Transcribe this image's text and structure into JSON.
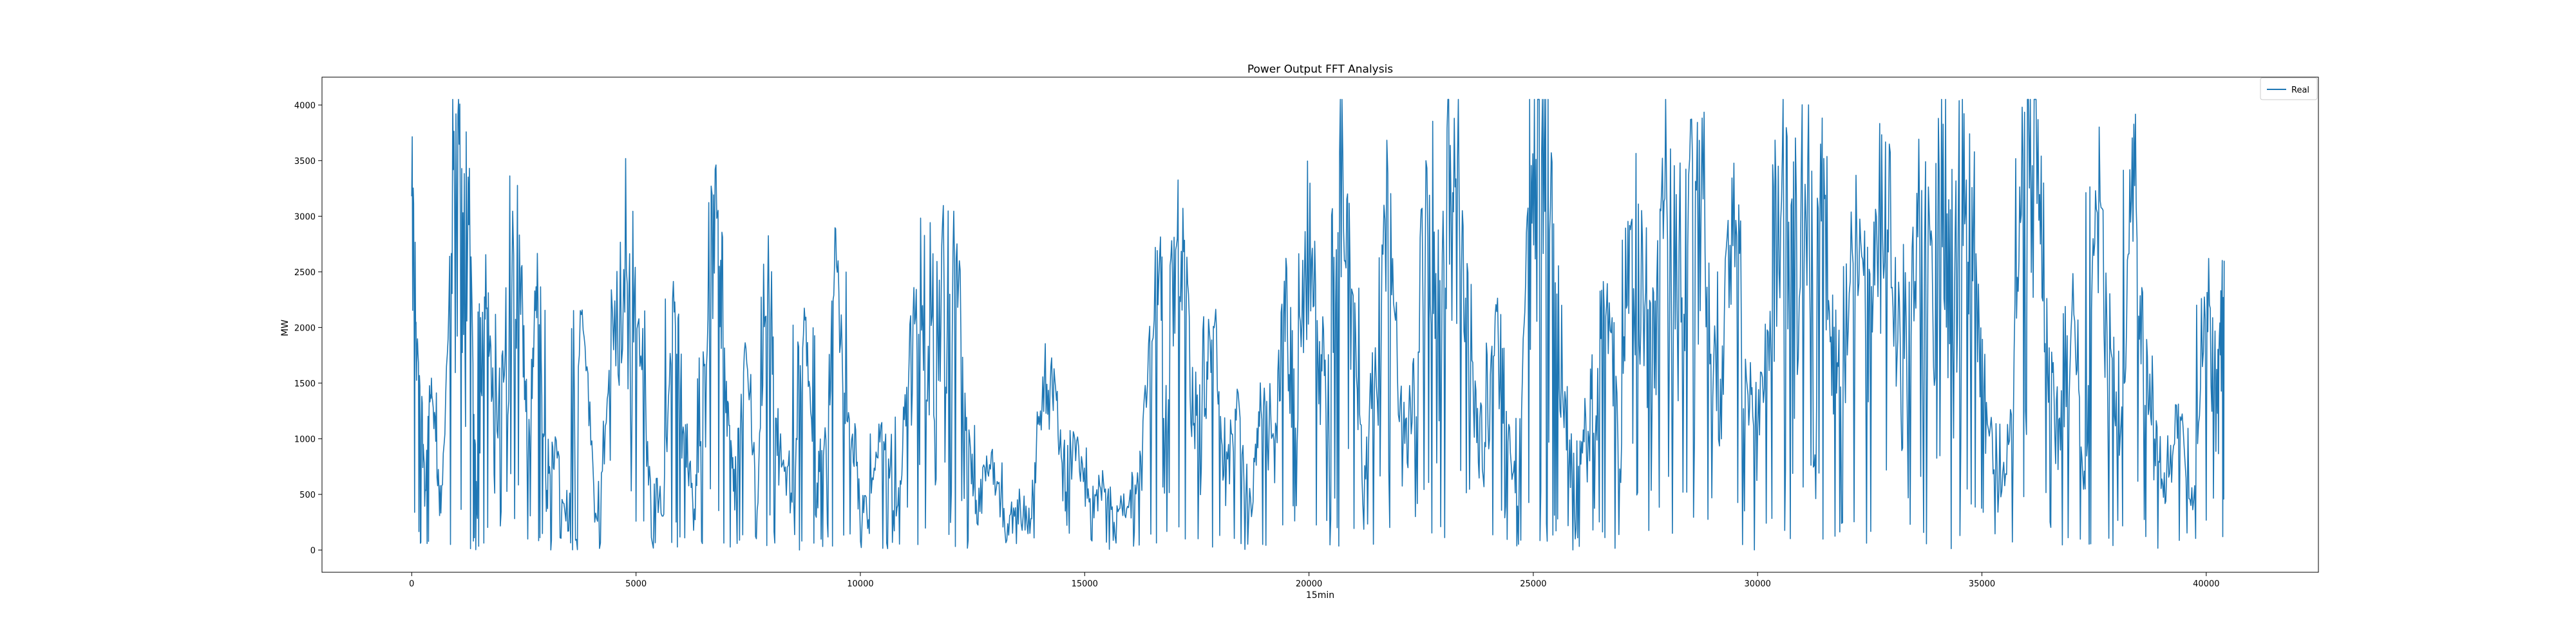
{
  "chart_data": {
    "type": "line",
    "title": "Power Output FFT Analysis",
    "xlabel": "15min",
    "ylabel": "MW",
    "xlim": [
      -2000,
      42500
    ],
    "ylim": [
      -200,
      4250
    ],
    "xticks": [
      0,
      5000,
      10000,
      15000,
      20000,
      25000,
      30000,
      35000,
      40000
    ],
    "yticks": [
      0,
      500,
      1000,
      1500,
      2000,
      2500,
      3000,
      3500,
      4000
    ],
    "grid": false,
    "legend_position": "top-right",
    "series": [
      {
        "name": "Real",
        "color": "#1f77b4",
        "anchors": [
          [
            0,
            2900
          ],
          [
            150,
            1800
          ],
          [
            300,
            600
          ],
          [
            450,
            1500
          ],
          [
            650,
            300
          ],
          [
            900,
            2900
          ],
          [
            1100,
            3100
          ],
          [
            1300,
            2800
          ],
          [
            1450,
            300
          ],
          [
            1650,
            2400
          ],
          [
            1850,
            900
          ],
          [
            2100,
            2200
          ],
          [
            2400,
            2600
          ],
          [
            2600,
            800
          ],
          [
            2800,
            2500
          ],
          [
            3000,
            400
          ],
          [
            3200,
            1000
          ],
          [
            3500,
            300
          ],
          [
            3800,
            2300
          ],
          [
            4100,
            300
          ],
          [
            4400,
            1300
          ],
          [
            4750,
            2500
          ],
          [
            5000,
            2200
          ],
          [
            5300,
            700
          ],
          [
            5600,
            300
          ],
          [
            5850,
            2400
          ],
          [
            6050,
            1200
          ],
          [
            6300,
            300
          ],
          [
            6550,
            1800
          ],
          [
            6800,
            3200
          ],
          [
            7000,
            1400
          ],
          [
            7200,
            500
          ],
          [
            7450,
            1800
          ],
          [
            7700,
            400
          ],
          [
            7950,
            2600
          ],
          [
            8200,
            900
          ],
          [
            8500,
            400
          ],
          [
            8750,
            2100
          ],
          [
            9000,
            500
          ],
          [
            9250,
            1000
          ],
          [
            9450,
            2700
          ],
          [
            9700,
            1200
          ],
          [
            9950,
            500
          ],
          [
            10200,
            300
          ],
          [
            10500,
            1200
          ],
          [
            10800,
            200
          ],
          [
            11050,
            1500
          ],
          [
            11300,
            2300
          ],
          [
            11600,
            2000
          ],
          [
            11850,
            2200
          ],
          [
            12100,
            2700
          ],
          [
            12350,
            1200
          ],
          [
            12600,
            300
          ],
          [
            12900,
            800
          ],
          [
            13200,
            200
          ],
          [
            13500,
            400
          ],
          [
            13800,
            300
          ],
          [
            14050,
            1300
          ],
          [
            14300,
            1500
          ],
          [
            14550,
            600
          ],
          [
            14800,
            1000
          ],
          [
            15100,
            300
          ],
          [
            15400,
            600
          ],
          [
            15700,
            300
          ],
          [
            16000,
            400
          ],
          [
            16250,
            800
          ],
          [
            16600,
            2500
          ],
          [
            16850,
            1500
          ],
          [
            17100,
            3000
          ],
          [
            17350,
            1500
          ],
          [
            17600,
            900
          ],
          [
            17850,
            2200
          ],
          [
            18100,
            500
          ],
          [
            18400,
            1300
          ],
          [
            18700,
            300
          ],
          [
            18950,
            1500
          ],
          [
            19200,
            800
          ],
          [
            19450,
            2200
          ],
          [
            19700,
            1200
          ],
          [
            19950,
            2700
          ],
          [
            20200,
            1800
          ],
          [
            20450,
            1200
          ],
          [
            20700,
            3300
          ],
          [
            20950,
            2400
          ],
          [
            21200,
            600
          ],
          [
            21500,
            1900
          ],
          [
            21800,
            3000
          ],
          [
            22100,
            800
          ],
          [
            22350,
            1400
          ],
          [
            22650,
            3200
          ],
          [
            22900,
            2200
          ],
          [
            23150,
            3500
          ],
          [
            23400,
            2700
          ],
          [
            23650,
            1400
          ],
          [
            23900,
            600
          ],
          [
            24150,
            2000
          ],
          [
            24400,
            1200
          ],
          [
            24650,
            400
          ],
          [
            24900,
            3300
          ],
          [
            25150,
            3600
          ],
          [
            25400,
            2900
          ],
          [
            25650,
            1500
          ],
          [
            25900,
            600
          ],
          [
            26150,
            1000
          ],
          [
            26400,
            1400
          ],
          [
            26650,
            2200
          ],
          [
            26950,
            900
          ],
          [
            27200,
            3000
          ],
          [
            27450,
            2400
          ],
          [
            27700,
            1900
          ],
          [
            27950,
            3400
          ],
          [
            28250,
            2500
          ],
          [
            28550,
            3500
          ],
          [
            28850,
            2600
          ],
          [
            29150,
            1300
          ],
          [
            29450,
            3000
          ],
          [
            29750,
            1700
          ],
          [
            30000,
            900
          ],
          [
            30300,
            2200
          ],
          [
            30550,
            3500
          ],
          [
            30800,
            1900
          ],
          [
            31100,
            3800
          ],
          [
            31350,
            3400
          ],
          [
            31600,
            2200
          ],
          [
            31850,
            1400
          ],
          [
            32150,
            2900
          ],
          [
            32450,
            1600
          ],
          [
            32700,
            2800
          ],
          [
            33000,
            2400
          ],
          [
            33250,
            1300
          ],
          [
            33550,
            2900
          ],
          [
            33850,
            2200
          ],
          [
            34100,
            3100
          ],
          [
            34350,
            2700
          ],
          [
            34600,
            3300
          ],
          [
            34850,
            2500
          ],
          [
            35100,
            1200
          ],
          [
            35400,
            400
          ],
          [
            35700,
            1300
          ],
          [
            35950,
            4000
          ],
          [
            36250,
            3500
          ],
          [
            36500,
            1600
          ],
          [
            36750,
            900
          ],
          [
            37050,
            2200
          ],
          [
            37300,
            600
          ],
          [
            37550,
            3400
          ],
          [
            37850,
            2000
          ],
          [
            38100,
            800
          ],
          [
            38350,
            3700
          ],
          [
            38600,
            1800
          ],
          [
            38850,
            1000
          ],
          [
            39100,
            600
          ],
          [
            39400,
            1200
          ],
          [
            39700,
            400
          ],
          [
            40000,
            2400
          ],
          [
            40250,
            1200
          ],
          [
            40400,
            2600
          ]
        ]
      }
    ]
  }
}
